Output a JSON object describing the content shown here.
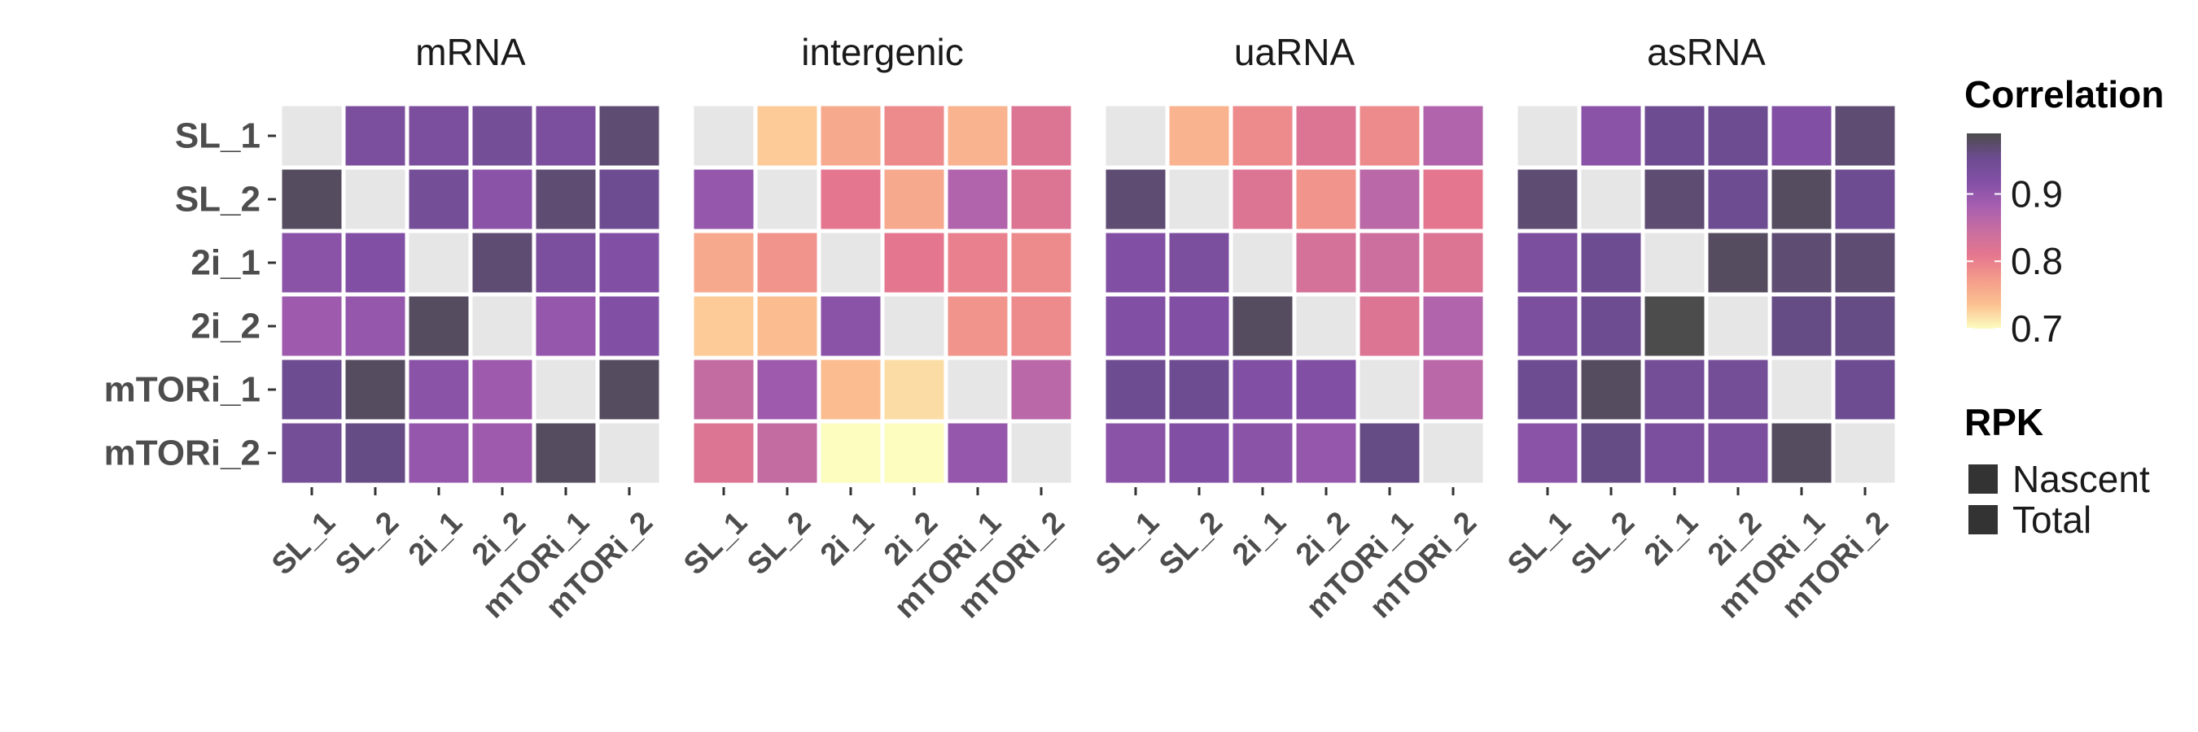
{
  "chart_data": {
    "type": "heatmap",
    "rows": [
      "SL_1",
      "SL_2",
      "2i_1",
      "2i_2",
      "mTORi_1",
      "mTORi_2"
    ],
    "columns": [
      "SL_1",
      "SL_2",
      "2i_1",
      "2i_2",
      "mTORi_1",
      "mTORi_2"
    ],
    "panels": [
      {
        "title": "mRNA",
        "values": [
          [
            null,
            0.93,
            0.93,
            0.94,
            0.93,
            0.97
          ],
          [
            0.98,
            null,
            0.94,
            0.91,
            0.97,
            0.95
          ],
          [
            0.91,
            0.92,
            null,
            0.97,
            0.93,
            0.92
          ],
          [
            0.89,
            0.9,
            0.98,
            null,
            0.9,
            0.92
          ],
          [
            0.95,
            0.98,
            0.91,
            0.89,
            null,
            0.98
          ],
          [
            0.94,
            0.96,
            0.9,
            0.89,
            0.98,
            null
          ]
        ]
      },
      {
        "title": "intergenic",
        "values": [
          [
            null,
            0.73,
            0.76,
            0.79,
            0.75,
            0.82
          ],
          [
            0.9,
            null,
            0.81,
            0.76,
            0.87,
            0.82
          ],
          [
            0.76,
            0.78,
            null,
            0.81,
            0.8,
            0.79
          ],
          [
            0.73,
            0.74,
            0.91,
            null,
            0.78,
            0.79
          ],
          [
            0.85,
            0.89,
            0.74,
            0.72,
            null,
            0.86
          ],
          [
            0.82,
            0.85,
            0.7,
            0.7,
            0.9,
            null
          ]
        ]
      },
      {
        "title": "uaRNA",
        "values": [
          [
            null,
            0.75,
            0.79,
            0.82,
            0.79,
            0.87
          ],
          [
            0.97,
            null,
            0.82,
            0.78,
            0.86,
            0.81
          ],
          [
            0.92,
            0.93,
            null,
            0.83,
            0.84,
            0.82
          ],
          [
            0.92,
            0.92,
            0.98,
            null,
            0.82,
            0.87
          ],
          [
            0.95,
            0.95,
            0.92,
            0.92,
            null,
            0.86
          ],
          [
            0.91,
            0.92,
            0.91,
            0.9,
            0.96,
            null
          ]
        ]
      },
      {
        "title": "asRNA",
        "values": [
          [
            null,
            0.91,
            0.95,
            0.95,
            0.92,
            0.97
          ],
          [
            0.97,
            null,
            0.97,
            0.95,
            0.98,
            0.95
          ],
          [
            0.93,
            0.95,
            null,
            0.98,
            0.97,
            0.97
          ],
          [
            0.93,
            0.95,
            0.99,
            null,
            0.96,
            0.96
          ],
          [
            0.95,
            0.98,
            0.94,
            0.94,
            null,
            0.95
          ],
          [
            0.91,
            0.96,
            0.93,
            0.93,
            0.98,
            null
          ]
        ]
      }
    ],
    "diagonal_color": "#e6e6e6",
    "cell_border_color": "#ffffff",
    "legend": {
      "placement": "right",
      "title": "Correlation",
      "range": [
        0.7,
        0.99
      ],
      "ticks": [
        0.7,
        0.8,
        0.9
      ],
      "tick_labels": [
        "0.7",
        "0.8",
        "0.9"
      ],
      "colors": [
        "#fcfdbf",
        "#fcc190",
        "#f49c8b",
        "#e5778e",
        "#c86ea0",
        "#a75fb0",
        "#8350a6",
        "#6c4c90",
        "#4c4c4c"
      ]
    },
    "rpk_legend": {
      "title": "RPK",
      "items": [
        "Nascent",
        "Total"
      ],
      "swatch_color": "#333333"
    }
  }
}
